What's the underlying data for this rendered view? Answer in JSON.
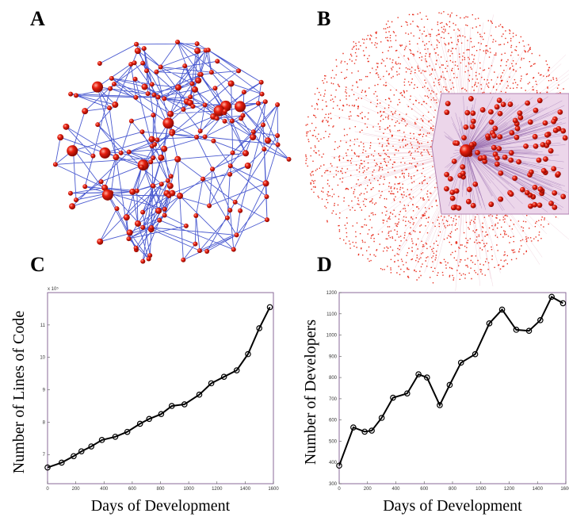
{
  "panel_labels": [
    "A",
    "B",
    "C",
    "D"
  ],
  "chart_data": [
    {
      "type": "line",
      "xlabel": "Days of Development",
      "ylabel": "Number of Lines of Code",
      "y_multiplier": "x 10⁵",
      "x": [
        0,
        100,
        185,
        240,
        310,
        385,
        480,
        565,
        655,
        720,
        805,
        880,
        970,
        1075,
        1160,
        1250,
        1340,
        1420,
        1500,
        1575
      ],
      "series": [
        {
          "name": "Lines of Code",
          "color": "#000000",
          "values": [
            6.6,
            6.75,
            6.95,
            7.1,
            7.25,
            7.45,
            7.55,
            7.7,
            7.95,
            8.1,
            8.25,
            8.5,
            8.55,
            8.85,
            9.2,
            9.4,
            9.6,
            10.1,
            10.9,
            11.55
          ]
        }
      ],
      "xlim": [
        0,
        1600
      ],
      "xticks": [
        0,
        200,
        400,
        600,
        800,
        1000,
        1200,
        1400,
        1600
      ],
      "ylim": [
        6.1,
        12
      ],
      "yticks": [
        7,
        8,
        9,
        10,
        11
      ]
    },
    {
      "type": "line",
      "xlabel": "Days of Development",
      "ylabel": "Number of Developers",
      "x": [
        0,
        100,
        180,
        230,
        300,
        380,
        480,
        560,
        620,
        710,
        780,
        860,
        960,
        1060,
        1150,
        1250,
        1340,
        1420,
        1500,
        1580
      ],
      "series": [
        {
          "name": "Developers",
          "color": "#000000",
          "values": [
            385,
            565,
            545,
            550,
            610,
            705,
            725,
            815,
            800,
            670,
            765,
            870,
            910,
            1055,
            1120,
            1025,
            1020,
            1070,
            1180,
            1150
          ]
        }
      ],
      "xlim": [
        0,
        1600
      ],
      "xticks": [
        0,
        200,
        400,
        600,
        800,
        1000,
        1200,
        1400,
        1600
      ],
      "ylim": [
        300,
        1200
      ],
      "yticks": [
        300,
        400,
        500,
        600,
        700,
        800,
        900,
        1000,
        1100,
        1200
      ]
    }
  ]
}
